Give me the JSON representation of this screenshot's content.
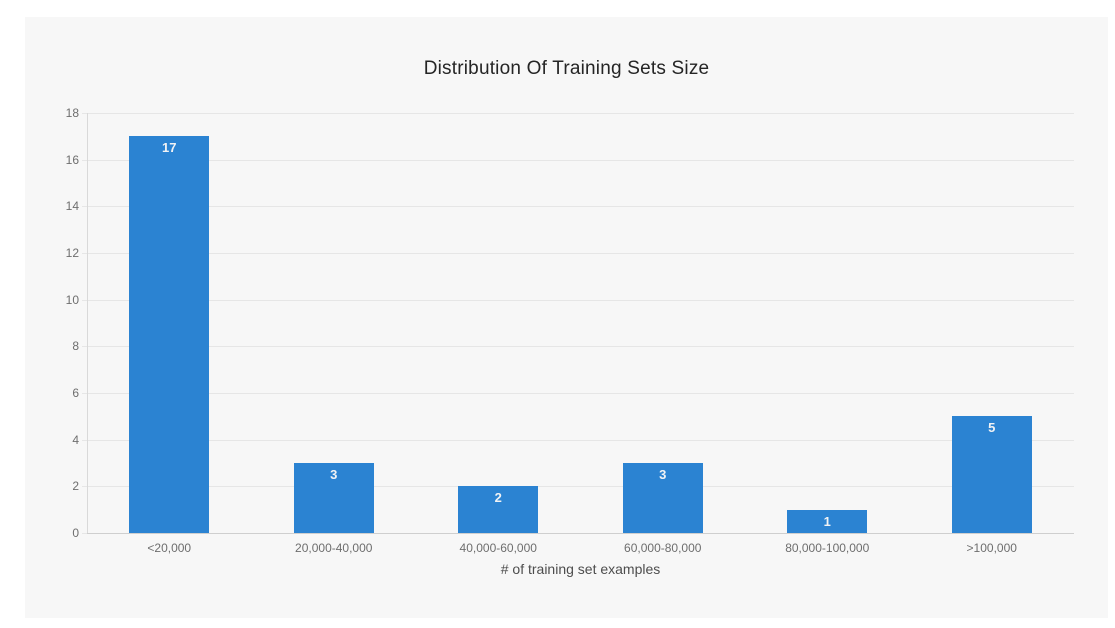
{
  "page": {
    "background": "#ffffff"
  },
  "panel": {
    "background": "#f7f7f7"
  },
  "chart_data": {
    "type": "bar",
    "title": "Distribution Of Training Sets Size",
    "categories": [
      "<20,000",
      "20,000-40,000",
      "40,000-60,000",
      "60,000-80,000",
      "80,000-100,000",
      ">100,000"
    ],
    "values": [
      17,
      3,
      2,
      3,
      1,
      5
    ],
    "xlabel": "# of training set examples",
    "ylabel": "",
    "ylim": [
      0,
      18
    ],
    "yticks": [
      0,
      2,
      4,
      6,
      8,
      10,
      12,
      14,
      16,
      18
    ],
    "grid": true,
    "legend": "none",
    "bar_color": "#2b83d2",
    "value_label_color": "#f1f3f5",
    "colors": {
      "title": "#252525",
      "tick_label": "#6e6e6e",
      "axis_title": "#4d4d4d",
      "gridline": "#e6e6e6",
      "baseline": "#cfcfcf",
      "axis_line": "#d9d9d9"
    }
  }
}
